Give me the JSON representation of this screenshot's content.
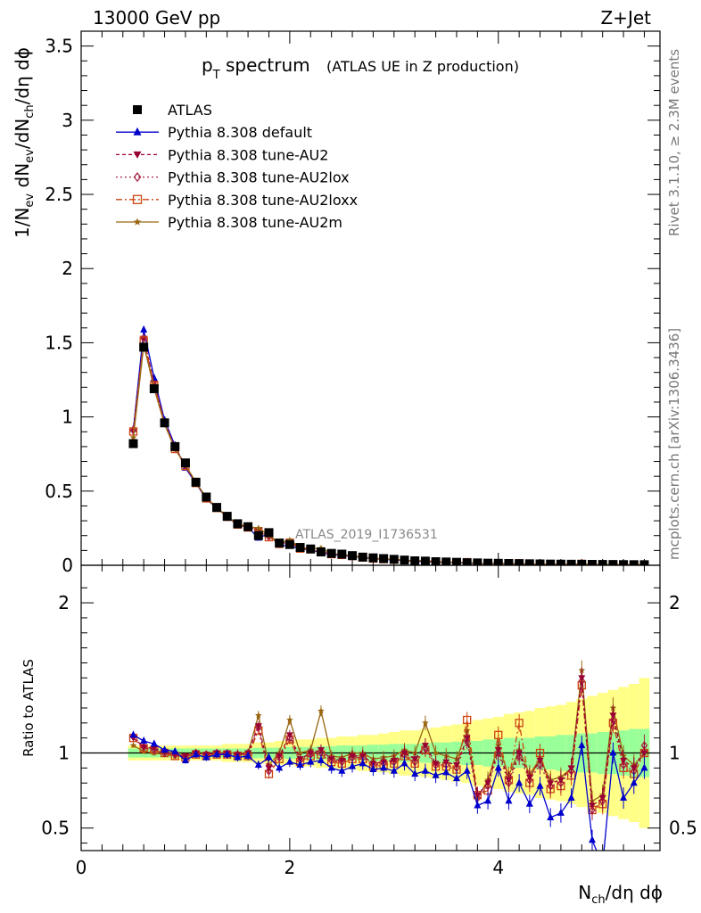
{
  "header": {
    "energy_label": "13000 GeV pp",
    "process_label": "Z+Jet"
  },
  "side_labels": {
    "rivet": "Rivet 3.1.10, ≥ 2.3M events",
    "mcplots": "mcplots.cern.ch [arXiv:1306.3436]"
  },
  "analysis_id": "ATLAS_2019_I1736531",
  "colors": {
    "data": "#000000",
    "default": "#0000cc",
    "au2": "#990033",
    "au2lox": "#aa2244",
    "au2loxx": "#cc4411",
    "au2m": "#996611",
    "band_green": "#99ff99",
    "band_yellow": "#ffff88"
  },
  "chart_data": [
    {
      "type": "scatter",
      "panel": "main",
      "title": "p_T spectrum",
      "title_main": "p",
      "title_sub": "T",
      "title_rest": " spectrum",
      "title_suffix": "(ATLAS UE in Z production)",
      "xlabel": "N_ch/dη dϕ",
      "xlabel_parts": {
        "base": "N",
        "sub": "ch",
        "rest": "/dη dϕ"
      },
      "ylabel": "1/N_ev dN_ev/dN_ch/dη dϕ",
      "ylabel_parts": [
        "1/N",
        "ev",
        " dN",
        "ev",
        "/dN",
        "ch",
        "/dη dϕ"
      ],
      "xlim": [
        0,
        5.55
      ],
      "ylim": [
        0,
        3.6
      ],
      "x_ticks": [
        "0",
        "2",
        "4"
      ],
      "y_ticks": [
        "0",
        "0.5",
        "1",
        "1.5",
        "2",
        "2.5",
        "3",
        "3.5"
      ],
      "legend_position": "top-left",
      "legend": [
        {
          "key": "data",
          "label": "ATLAS"
        },
        {
          "key": "default",
          "label": "Pythia 8.308 default"
        },
        {
          "key": "au2",
          "label": "Pythia 8.308 tune-AU2"
        },
        {
          "key": "au2lox",
          "label": "Pythia 8.308 tune-AU2lox"
        },
        {
          "key": "au2loxx",
          "label": "Pythia 8.308 tune-AU2loxx"
        },
        {
          "key": "au2m",
          "label": "Pythia 8.308 tune-AU2m"
        }
      ],
      "x": [
        0.5,
        0.6,
        0.7,
        0.8,
        0.9,
        1.0,
        1.1,
        1.2,
        1.3,
        1.4,
        1.5,
        1.6,
        1.7,
        1.8,
        1.9,
        2.0,
        2.1,
        2.2,
        2.3,
        2.4,
        2.5,
        2.6,
        2.7,
        2.8,
        2.9,
        3.0,
        3.1,
        3.2,
        3.3,
        3.4,
        3.5,
        3.6,
        3.7,
        3.8,
        3.9,
        4.0,
        4.1,
        4.2,
        4.3,
        4.4,
        4.5,
        4.6,
        4.7,
        4.8,
        4.9,
        5.0,
        5.1,
        5.2,
        5.3,
        5.4
      ],
      "data_values": [
        0.82,
        1.47,
        1.19,
        0.96,
        0.8,
        0.69,
        0.56,
        0.46,
        0.39,
        0.33,
        0.28,
        0.26,
        0.2,
        0.22,
        0.15,
        0.14,
        0.12,
        0.11,
        0.09,
        0.08,
        0.075,
        0.065,
        0.055,
        0.05,
        0.045,
        0.04,
        0.035,
        0.03,
        0.028,
        0.024,
        0.022,
        0.02,
        0.017,
        0.016,
        0.014,
        0.013,
        0.012,
        0.011,
        0.01,
        0.009,
        0.008,
        0.0075,
        0.007,
        0.0065,
        0.006,
        0.0055,
        0.005,
        0.0045,
        0.004,
        0.0038
      ],
      "data_errors": [
        0.02,
        0.03,
        0.02,
        0.02,
        0.015,
        0.01,
        0.01,
        0.008,
        0.007,
        0.006,
        0.005,
        0.005,
        0.004,
        0.004,
        0.003,
        0.003,
        0.003,
        0.002,
        0.002,
        0.002,
        0.002,
        0.002,
        0.002,
        0.002,
        0.002,
        0.002,
        0.002,
        0.002,
        0.002,
        0.002,
        0.002,
        0.002,
        0.002,
        0.002,
        0.002,
        0.002,
        0.002,
        0.002,
        0.002,
        0.002,
        0.002,
        0.002,
        0.002,
        0.002,
        0.002,
        0.002,
        0.002,
        0.002,
        0.002,
        0.002
      ]
    },
    {
      "type": "line",
      "panel": "ratio",
      "ylabel": "Ratio to ATLAS",
      "xlim": [
        0,
        5.55
      ],
      "ylim": [
        0.35,
        2.25
      ],
      "x_ticks": [
        "0",
        "2",
        "4"
      ],
      "y_ticks": [
        "0.5",
        "1",
        "2"
      ],
      "reference_value": 1.0,
      "x": [
        0.5,
        0.6,
        0.7,
        0.8,
        0.9,
        1.0,
        1.1,
        1.2,
        1.3,
        1.4,
        1.5,
        1.6,
        1.7,
        1.8,
        1.9,
        2.0,
        2.1,
        2.2,
        2.3,
        2.4,
        2.5,
        2.6,
        2.7,
        2.8,
        2.9,
        3.0,
        3.1,
        3.2,
        3.3,
        3.4,
        3.5,
        3.6,
        3.7,
        3.8,
        3.9,
        4.0,
        4.1,
        4.2,
        4.3,
        4.4,
        4.5,
        4.6,
        4.7,
        4.8,
        4.9,
        5.0,
        5.1,
        5.2,
        5.3,
        5.4
      ],
      "band_green_halfwidth": [
        0.03,
        0.03,
        0.03,
        0.03,
        0.03,
        0.03,
        0.03,
        0.03,
        0.03,
        0.03,
        0.03,
        0.03,
        0.035,
        0.035,
        0.035,
        0.04,
        0.04,
        0.04,
        0.045,
        0.045,
        0.05,
        0.05,
        0.05,
        0.055,
        0.055,
        0.06,
        0.06,
        0.06,
        0.065,
        0.07,
        0.07,
        0.075,
        0.08,
        0.08,
        0.09,
        0.09,
        0.1,
        0.1,
        0.1,
        0.11,
        0.11,
        0.12,
        0.12,
        0.13,
        0.13,
        0.14,
        0.14,
        0.15,
        0.16,
        0.16
      ],
      "band_yellow_halfwidth": [
        0.05,
        0.05,
        0.05,
        0.05,
        0.05,
        0.05,
        0.05,
        0.05,
        0.05,
        0.06,
        0.06,
        0.06,
        0.07,
        0.07,
        0.08,
        0.08,
        0.09,
        0.09,
        0.1,
        0.1,
        0.11,
        0.11,
        0.12,
        0.12,
        0.13,
        0.14,
        0.15,
        0.15,
        0.16,
        0.17,
        0.18,
        0.19,
        0.2,
        0.22,
        0.23,
        0.24,
        0.26,
        0.27,
        0.28,
        0.3,
        0.31,
        0.32,
        0.34,
        0.36,
        0.38,
        0.4,
        0.42,
        0.44,
        0.46,
        0.5
      ],
      "series": [
        {
          "key": "default",
          "name": "Pythia 8.308 default",
          "marker": "triangle-up",
          "values": [
            1.12,
            1.08,
            1.06,
            1.02,
            1.01,
            0.95,
            0.99,
            0.97,
            0.99,
            0.99,
            0.97,
            0.98,
            0.92,
            0.97,
            0.9,
            0.94,
            0.92,
            0.94,
            0.95,
            0.9,
            0.88,
            0.91,
            0.93,
            0.89,
            0.9,
            0.88,
            0.93,
            0.86,
            0.88,
            0.85,
            0.87,
            0.83,
            0.88,
            0.65,
            0.68,
            0.9,
            0.68,
            0.8,
            0.66,
            0.78,
            0.57,
            0.6,
            0.7,
            1.05,
            0.42,
            0.25,
            1.0,
            0.7,
            0.8,
            0.9
          ]
        },
        {
          "key": "au2",
          "name": "Pythia 8.308 tune-AU2",
          "marker": "triangle-down",
          "values": [
            1.1,
            1.04,
            1.03,
            1.01,
            0.99,
            0.98,
            1.0,
            0.99,
            1.0,
            1.0,
            0.99,
            1.0,
            1.18,
            0.9,
            0.98,
            1.12,
            0.96,
            1.0,
            1.02,
            0.96,
            0.95,
            0.98,
            0.98,
            0.93,
            0.94,
            0.95,
            1.0,
            0.96,
            1.05,
            0.93,
            0.94,
            0.92,
            1.1,
            0.72,
            0.8,
            1.02,
            0.82,
            1.0,
            0.84,
            0.95,
            0.8,
            0.82,
            0.9,
            1.5,
            0.65,
            0.7,
            1.25,
            0.95,
            0.9,
            1.0
          ]
        },
        {
          "key": "au2lox",
          "name": "Pythia 8.308 tune-AU2lox",
          "marker": "diamond-open",
          "values": [
            1.11,
            1.04,
            1.02,
            1.0,
            0.99,
            0.97,
            1.0,
            0.99,
            1.0,
            0.99,
            0.99,
            0.99,
            1.17,
            0.88,
            0.97,
            1.1,
            0.95,
            0.99,
            1.0,
            0.95,
            0.94,
            0.97,
            0.97,
            0.92,
            0.93,
            0.94,
            0.99,
            0.94,
            1.03,
            0.92,
            0.92,
            0.9,
            1.08,
            0.7,
            0.78,
            1.0,
            0.8,
            0.98,
            0.82,
            0.92,
            0.78,
            0.8,
            0.88,
            1.48,
            0.62,
            0.68,
            1.22,
            0.92,
            0.88,
            1.05
          ]
        },
        {
          "key": "au2loxx",
          "name": "Pythia 8.308 tune-AU2loxx",
          "marker": "square-open",
          "values": [
            1.1,
            1.03,
            1.02,
            1.0,
            0.98,
            0.97,
            0.99,
            0.98,
            0.99,
            0.99,
            0.98,
            0.98,
            1.15,
            0.86,
            0.96,
            1.09,
            0.94,
            0.98,
            0.99,
            0.94,
            0.93,
            0.96,
            0.96,
            0.91,
            0.92,
            0.93,
            0.98,
            0.93,
            1.02,
            0.91,
            0.91,
            0.89,
            1.22,
            0.72,
            0.75,
            1.12,
            0.82,
            1.2,
            0.8,
            1.0,
            0.76,
            0.78,
            0.85,
            1.45,
            0.62,
            0.66,
            1.2,
            0.9,
            0.86,
            1.0
          ]
        },
        {
          "key": "au2m",
          "name": "Pythia 8.308 tune-AU2m",
          "marker": "star",
          "values": [
            1.05,
            1.01,
            1.0,
            0.99,
            0.98,
            0.98,
            1.0,
            0.99,
            1.0,
            1.0,
            1.0,
            1.0,
            1.25,
            0.92,
            1.0,
            1.22,
            1.0,
            1.02,
            1.28,
            0.98,
            0.97,
            1.0,
            1.0,
            0.96,
            0.97,
            0.98,
            1.02,
            1.0,
            1.2,
            1.0,
            0.98,
            0.96,
            1.15,
            0.7,
            0.82,
            1.05,
            0.85,
            1.02,
            0.86,
            0.96,
            0.82,
            0.84,
            0.9,
            1.55,
            0.68,
            0.72,
            1.3,
            0.98,
            0.92,
            1.0
          ]
        }
      ]
    }
  ]
}
